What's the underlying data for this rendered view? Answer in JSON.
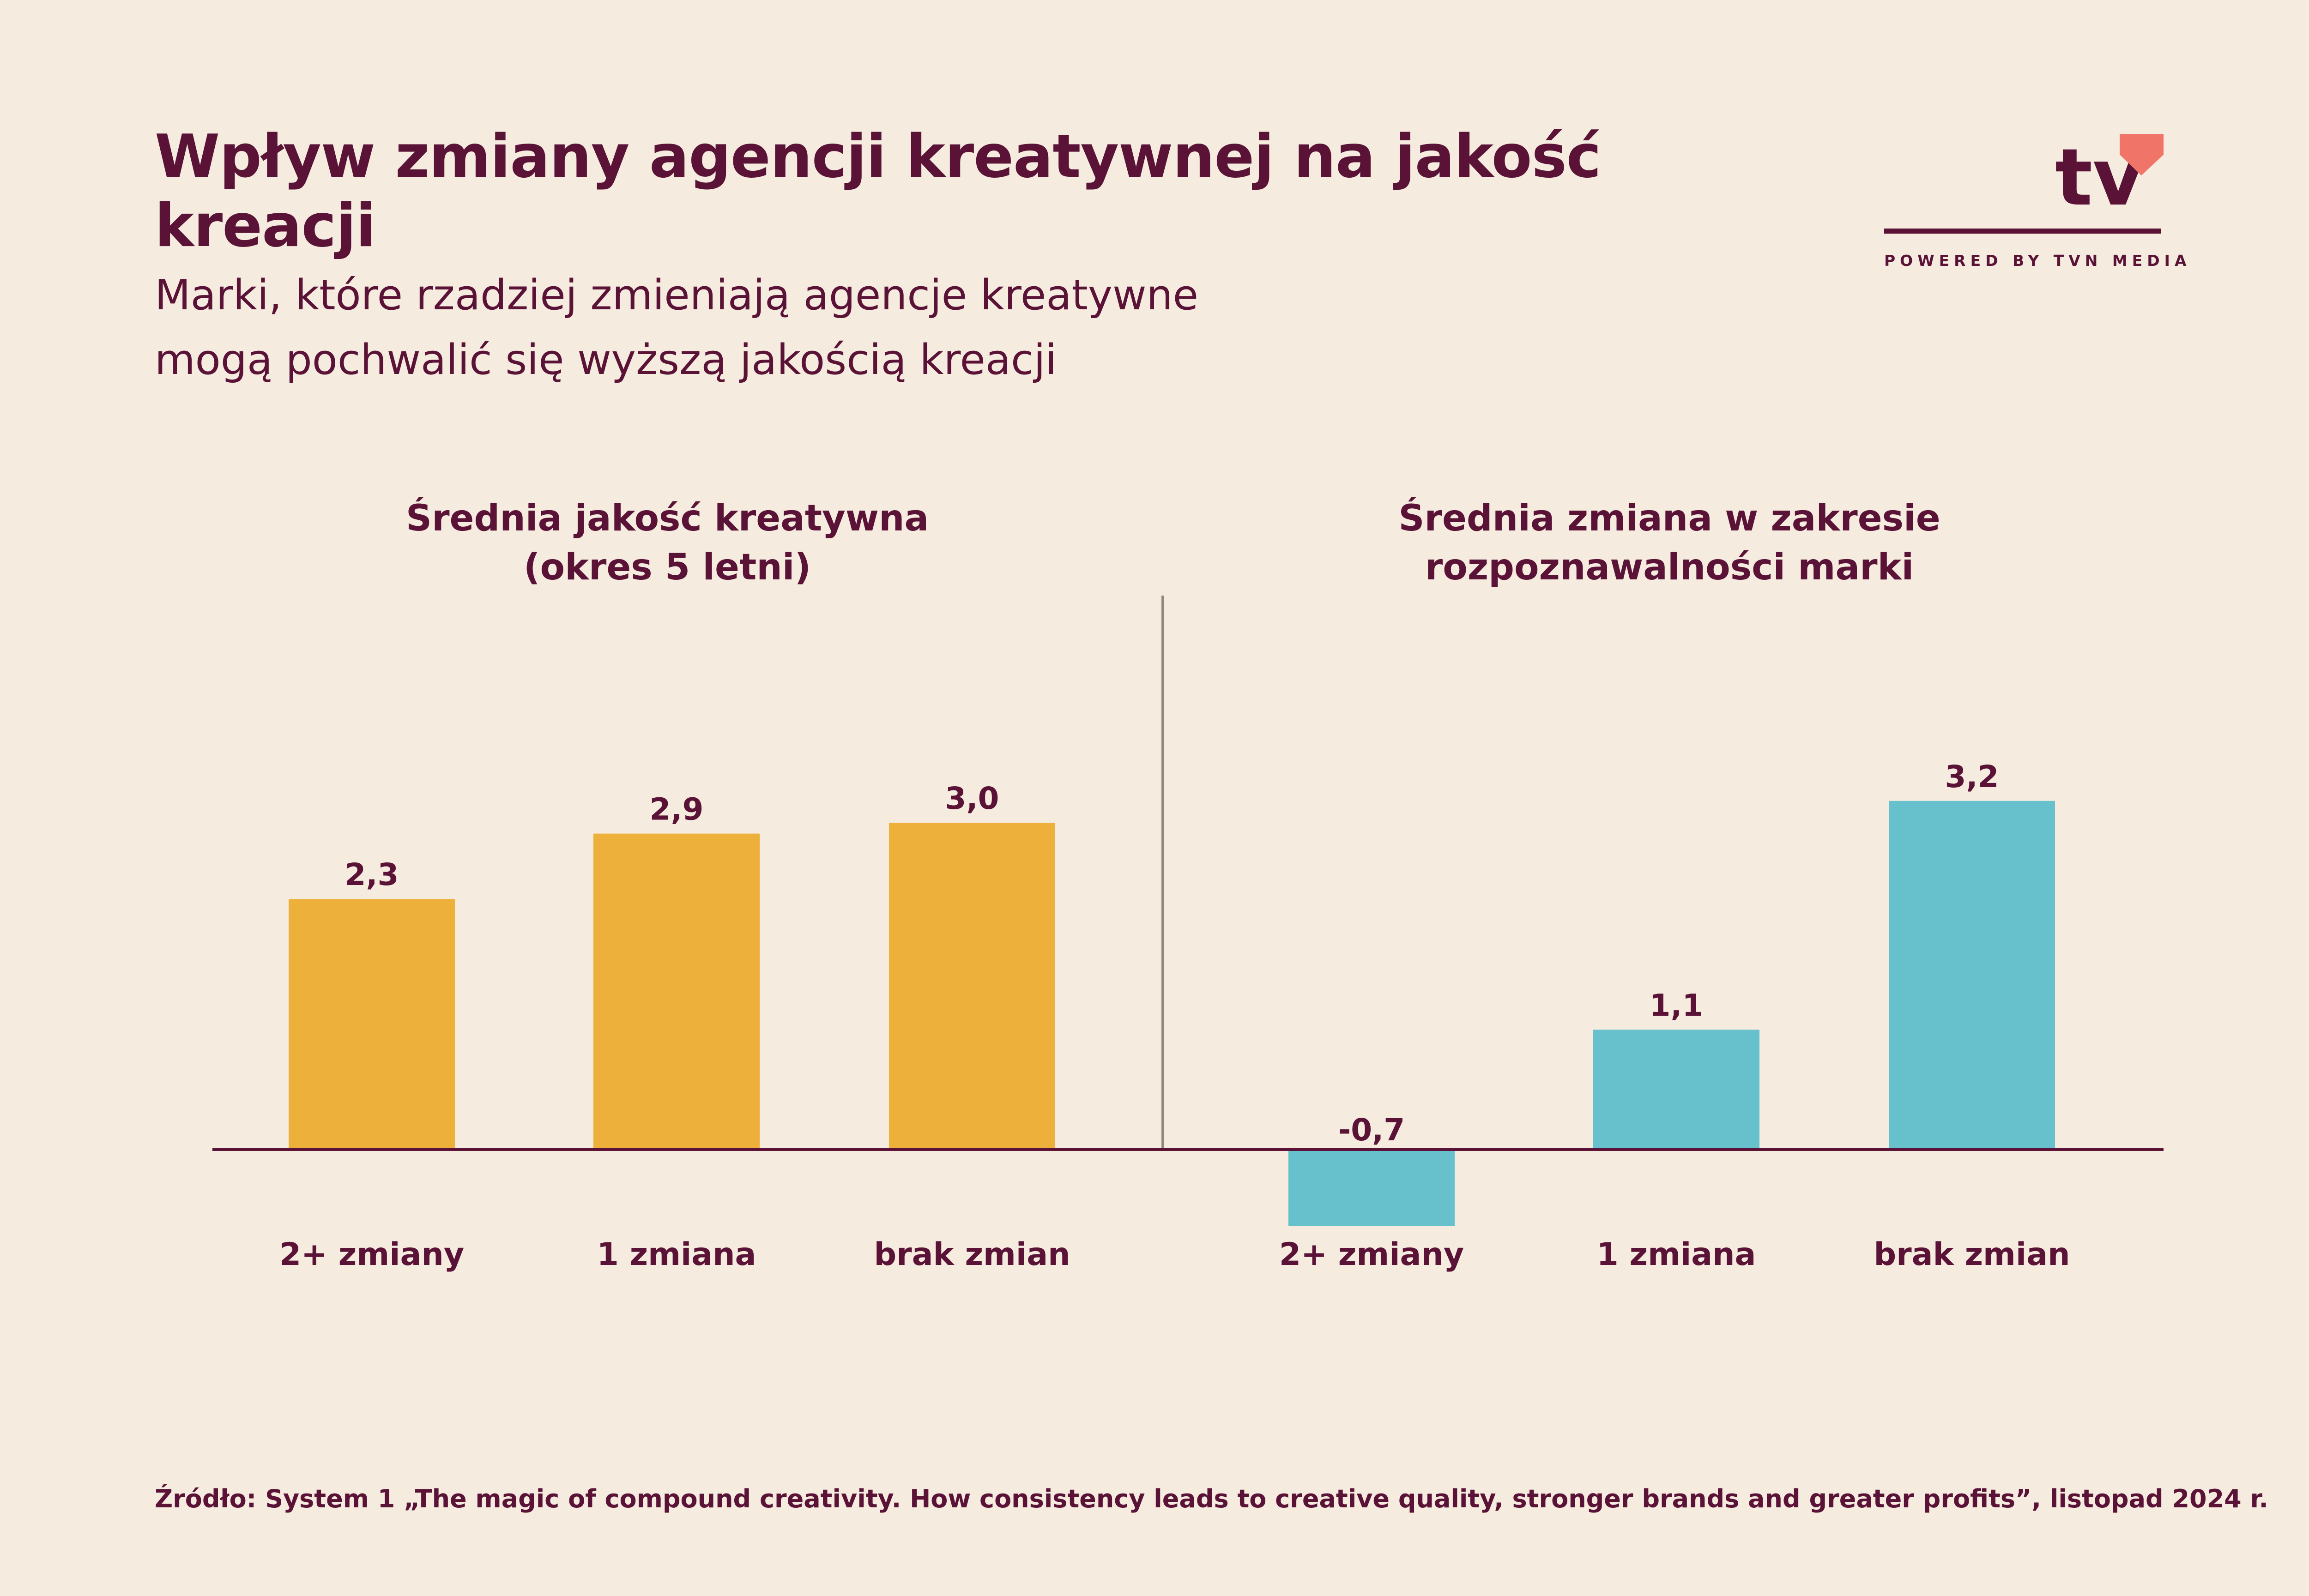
{
  "header": {
    "title": "Wpływ zmiany agencji kreatywnej na jakość kreacji",
    "subtitle_line1": "Marki, które rzadziej zmieniają agencje kreatywne",
    "subtitle_line2": "mogą pochwalić się wyższą jakością kreacji"
  },
  "logo": {
    "text": "tv",
    "tagline": "POWERED BY TVN MEDIA",
    "heart_color": "#F07468"
  },
  "source": "Źródło: System 1 „The magic of compound creativity. How consistency leads to creative quality, stronger brands and greater profits”, listopad 2024 r.",
  "colors": {
    "text": "#5A1237",
    "background": "#F5ECDF",
    "bar_left": "#EDB03B",
    "bar_right": "#66C1CC",
    "divider": "#8F8A80"
  },
  "chart_data": [
    {
      "type": "bar",
      "title_line1": "Średnia jakość kreatywna",
      "title_line2": "(okres 5 letni)",
      "categories": [
        "2+ zmiany",
        "1 zmiana",
        "brak zmian"
      ],
      "values": [
        2.3,
        2.9,
        3.0
      ],
      "labels": [
        "2,3",
        "2,9",
        "3,0"
      ],
      "color": "#EDB03B"
    },
    {
      "type": "bar",
      "title_line1": "Średnia zmiana w zakresie",
      "title_line2": "rozpoznawalności marki",
      "categories": [
        "2+ zmiany",
        "1 zmiana",
        "brak zmian"
      ],
      "values": [
        -0.7,
        1.1,
        3.2
      ],
      "labels": [
        "-0,7",
        "1,1",
        "3,2"
      ],
      "color": "#66C1CC"
    }
  ]
}
